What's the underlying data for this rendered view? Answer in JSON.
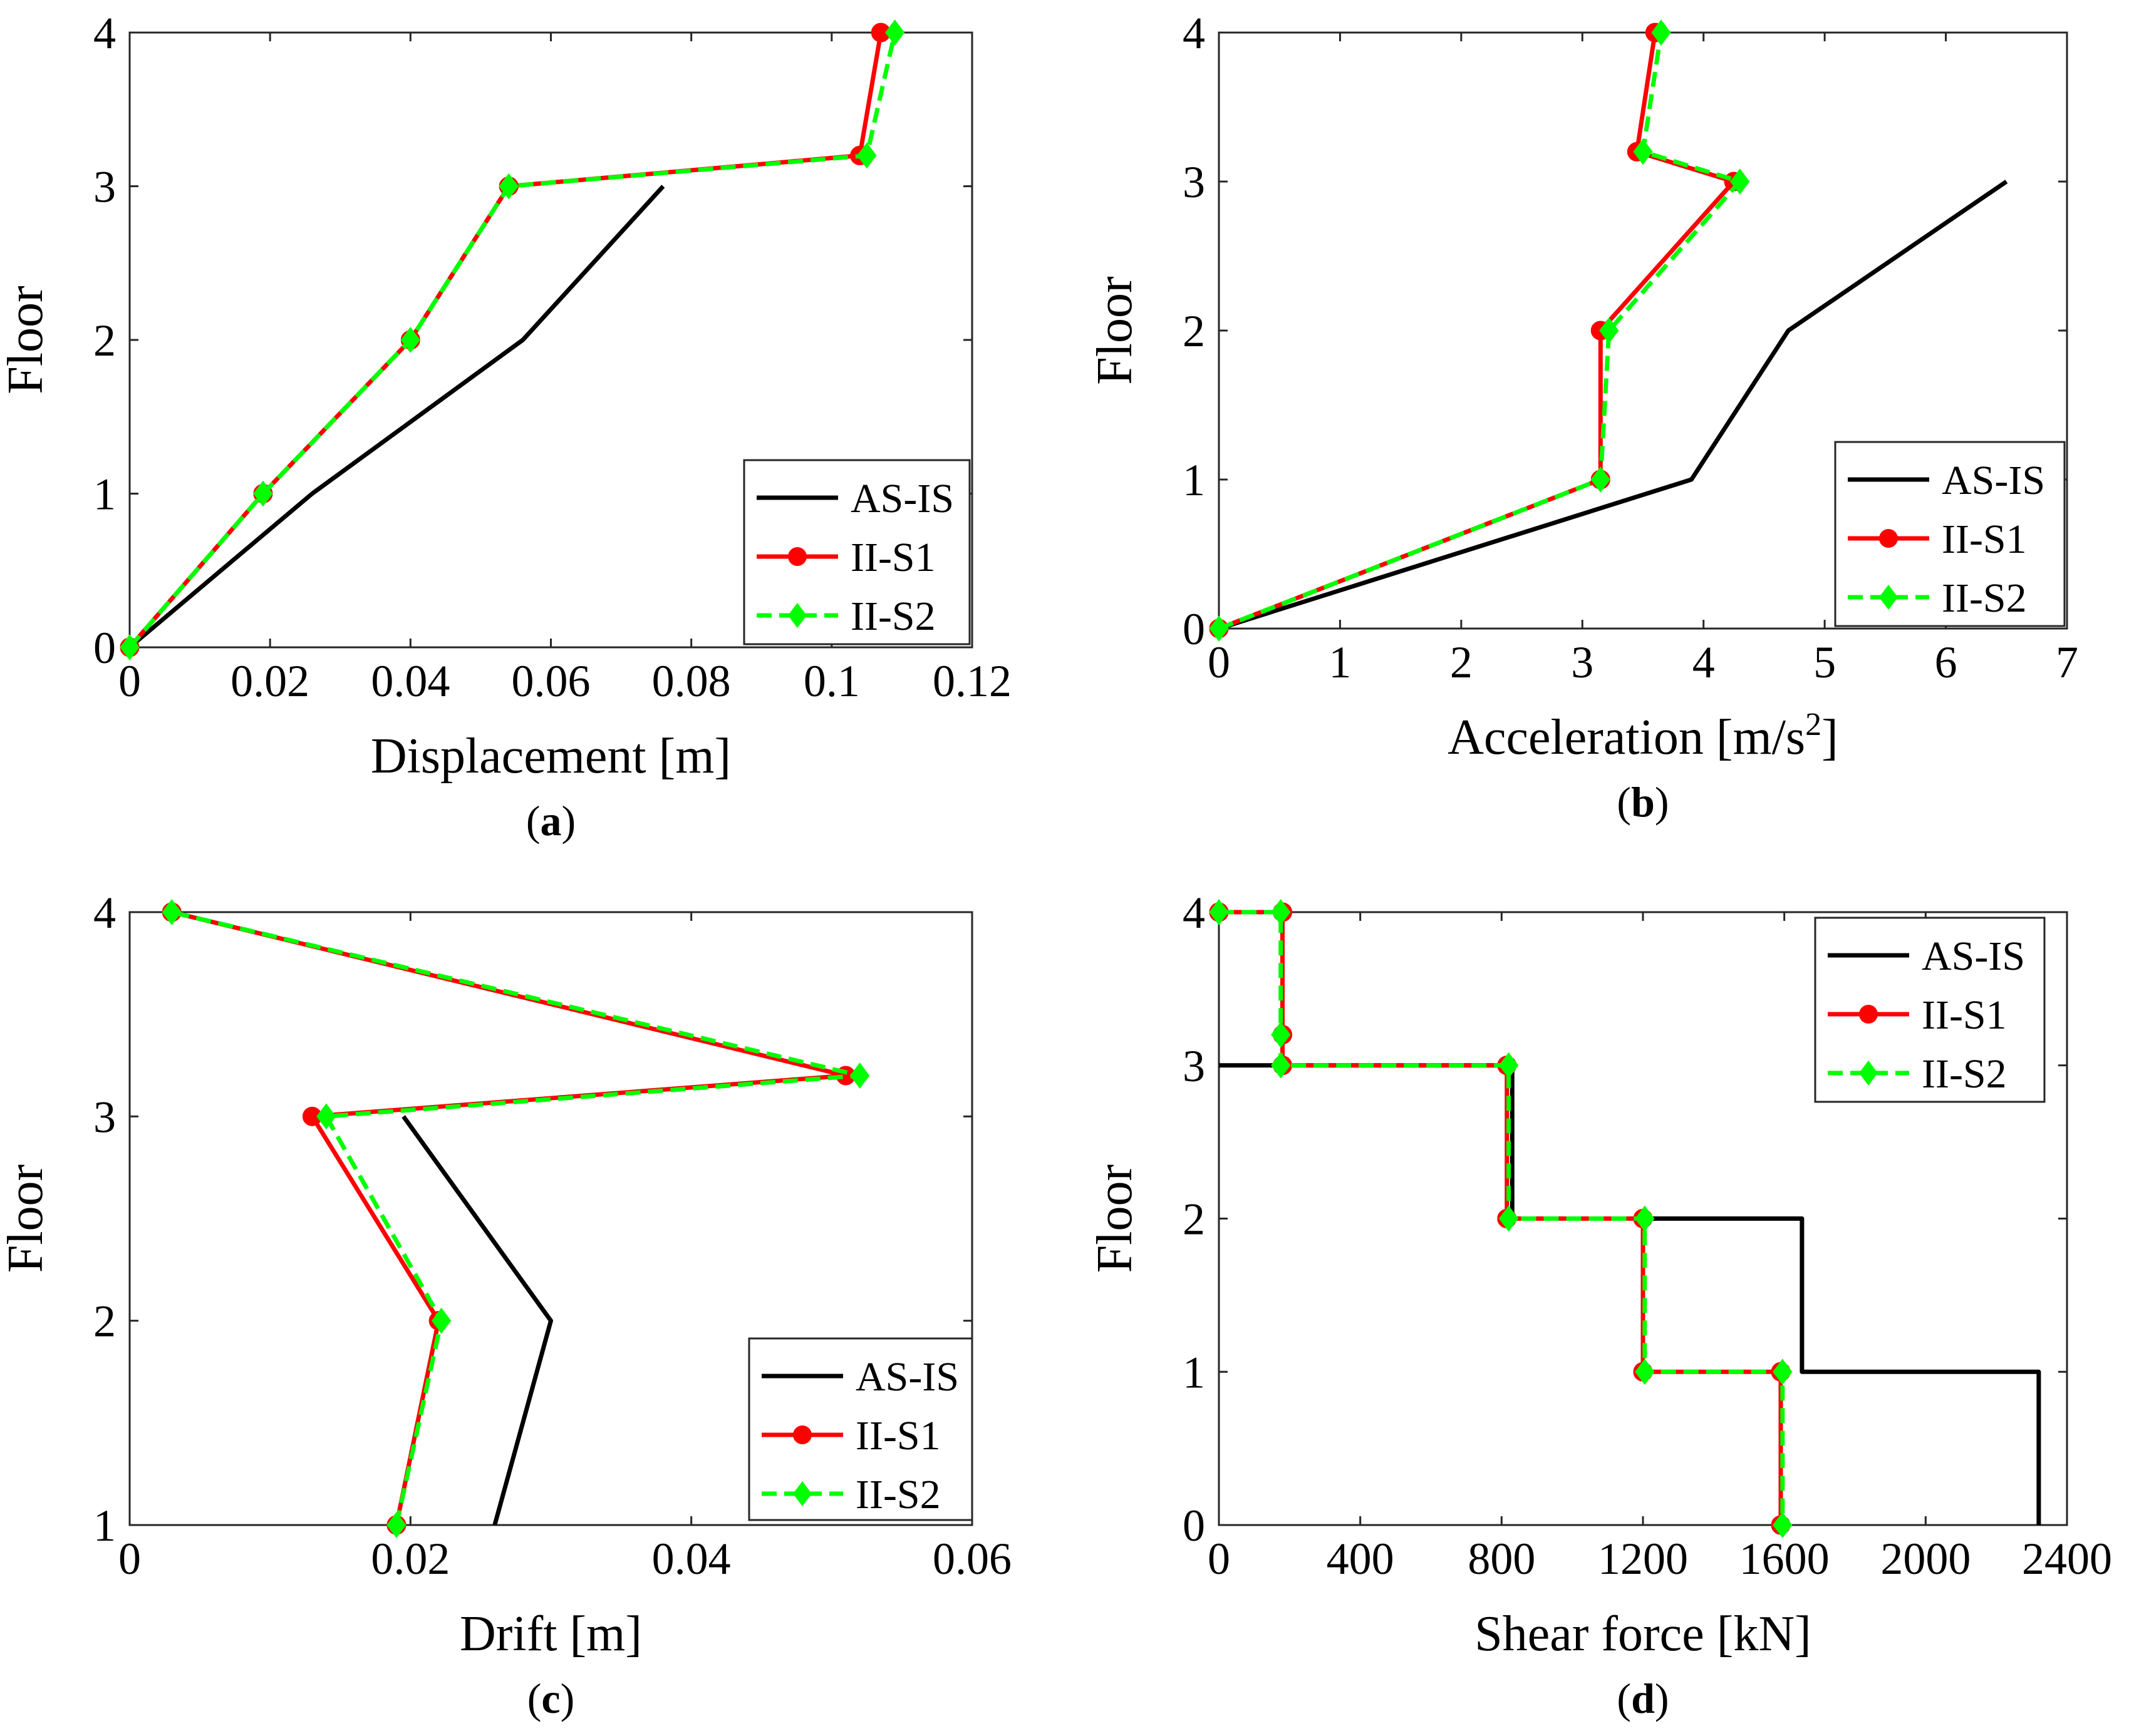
{
  "chart_data": [
    {
      "panel": "(a)",
      "panel_letter": "a",
      "type": "line",
      "xlabel": "Displacement [m]",
      "ylabel": "Floor",
      "xlim": [
        0,
        0.12
      ],
      "ylim": [
        0,
        4
      ],
      "xticks": [
        0,
        0.02,
        0.04,
        0.06,
        0.08,
        0.1,
        0.12
      ],
      "xtick_labels": [
        "0",
        "0.02",
        "0.04",
        "0.06",
        "0.08",
        "0.1",
        "0.12"
      ],
      "yticks": [
        0,
        1,
        2,
        3,
        4
      ],
      "ytick_labels": [
        "0",
        "1",
        "2",
        "3",
        "4"
      ],
      "legend_position": "bottom-right",
      "series": [
        {
          "name": "AS-IS",
          "color": "#000000",
          "marker": "none",
          "style": "solid",
          "x": [
            0,
            0.026,
            0.056,
            0.076
          ],
          "y": [
            0,
            1,
            2,
            3
          ]
        },
        {
          "name": "II-S1",
          "color": "#ff0000",
          "marker": "circle",
          "style": "solid",
          "x": [
            0,
            0.019,
            0.04,
            0.054,
            0.104,
            0.107
          ],
          "y": [
            0,
            1,
            2,
            3,
            3.2,
            4
          ]
        },
        {
          "name": "II-S2",
          "color": "#00ff00",
          "marker": "diamond",
          "style": "dashed",
          "x": [
            0,
            0.019,
            0.04,
            0.054,
            0.105,
            0.109
          ],
          "y": [
            0,
            1,
            2,
            3,
            3.2,
            4
          ]
        }
      ]
    },
    {
      "panel": "(b)",
      "panel_letter": "b",
      "type": "line",
      "xlabel": "Acceleration [m/s",
      "xlabel_sup": "2",
      "xlabel_end": "]",
      "ylabel": "Floor",
      "xlim": [
        0,
        7
      ],
      "ylim": [
        0,
        4
      ],
      "xticks": [
        0,
        1,
        2,
        3,
        4,
        5,
        6,
        7
      ],
      "xtick_labels": [
        "0",
        "1",
        "2",
        "3",
        "4",
        "5",
        "6",
        "7"
      ],
      "yticks": [
        0,
        1,
        2,
        3,
        4
      ],
      "ytick_labels": [
        "0",
        "1",
        "2",
        "3",
        "4"
      ],
      "legend_position": "bottom-right",
      "series": [
        {
          "name": "AS-IS",
          "color": "#000000",
          "marker": "none",
          "style": "solid",
          "x": [
            0,
            3.9,
            4.7,
            6.5
          ],
          "y": [
            0,
            1,
            2,
            3
          ]
        },
        {
          "name": "II-S1",
          "color": "#ff0000",
          "marker": "circle",
          "style": "solid",
          "x": [
            0,
            3.15,
            3.15,
            4.25,
            3.45,
            3.6
          ],
          "y": [
            0,
            1,
            2,
            3,
            3.2,
            4
          ]
        },
        {
          "name": "II-S2",
          "color": "#00ff00",
          "marker": "diamond",
          "style": "dashed",
          "x": [
            0,
            3.15,
            3.22,
            4.3,
            3.5,
            3.65
          ],
          "y": [
            0,
            1,
            2,
            3,
            3.2,
            4
          ]
        }
      ]
    },
    {
      "panel": "(c)",
      "panel_letter": "c",
      "type": "line",
      "xlabel": "Drift [m]",
      "ylabel": "Floor",
      "xlim": [
        0,
        0.06
      ],
      "ylim": [
        1,
        4
      ],
      "xticks": [
        0,
        0.02,
        0.04,
        0.06
      ],
      "xtick_labels": [
        "0",
        "0.02",
        "0.04",
        "0.06"
      ],
      "yticks": [
        1,
        2,
        3,
        4
      ],
      "ytick_labels": [
        "1",
        "2",
        "3",
        "4"
      ],
      "legend_position": "bottom-right",
      "series": [
        {
          "name": "AS-IS",
          "color": "#000000",
          "marker": "none",
          "style": "solid",
          "x": [
            0.026,
            0.03,
            0.0195
          ],
          "y": [
            1,
            2,
            3
          ]
        },
        {
          "name": "II-S1",
          "color": "#ff0000",
          "marker": "circle",
          "style": "solid",
          "x": [
            0.019,
            0.022,
            0.013,
            0.051,
            0.003
          ],
          "y": [
            1,
            2,
            3,
            3.2,
            4
          ]
        },
        {
          "name": "II-S2",
          "color": "#00ff00",
          "marker": "diamond",
          "style": "dashed",
          "x": [
            0.019,
            0.0222,
            0.014,
            0.052,
            0.003
          ],
          "y": [
            1,
            2,
            3,
            3.2,
            4
          ]
        }
      ]
    },
    {
      "panel": "(d)",
      "panel_letter": "d",
      "type": "line",
      "xlabel": "Shear force [kN]",
      "ylabel": "Floor",
      "xlim": [
        0,
        2400
      ],
      "ylim": [
        0,
        4
      ],
      "xticks": [
        0,
        400,
        800,
        1200,
        1600,
        2000,
        2400
      ],
      "xtick_labels": [
        "0",
        "400",
        "800",
        "1200",
        "1600",
        "2000",
        "2400"
      ],
      "yticks": [
        0,
        1,
        2,
        3,
        4
      ],
      "ytick_labels": [
        "0",
        "1",
        "2",
        "3",
        "4"
      ],
      "legend_position": "top-right",
      "series": [
        {
          "name": "AS-IS",
          "color": "#000000",
          "marker": "none",
          "style": "solid",
          "x": [
            0,
            830,
            830,
            1650,
            1650,
            2320,
            2320
          ],
          "y": [
            3,
            3,
            2,
            2,
            1,
            1,
            0
          ]
        },
        {
          "name": "II-S1",
          "color": "#ff0000",
          "marker": "circle",
          "style": "solid",
          "x": [
            0,
            180,
            180,
            180,
            815,
            815,
            1200,
            1200,
            1590,
            1590
          ],
          "y": [
            4,
            4,
            3.2,
            3,
            3,
            2,
            2,
            1,
            1,
            0
          ]
        },
        {
          "name": "II-S2",
          "color": "#00ff00",
          "marker": "diamond",
          "style": "dashed",
          "x": [
            0,
            175,
            175,
            175,
            820,
            820,
            1205,
            1205,
            1595,
            1595
          ],
          "y": [
            4,
            4,
            3.2,
            3,
            3,
            2,
            2,
            1,
            1,
            0
          ]
        }
      ]
    }
  ]
}
